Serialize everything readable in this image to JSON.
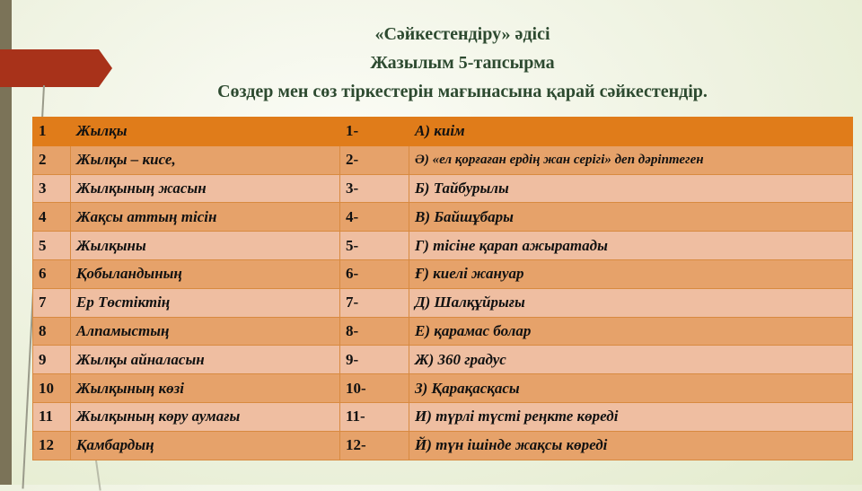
{
  "title": {
    "line1": "«Сәйкестендіру» әдісі",
    "line2": "Жазылым  5-тапсырма",
    "line3": "Сөздер мен сөз тіркестерін мағынасына қарай сәйкестендір."
  },
  "table": {
    "rows": [
      {
        "num": "1",
        "word": "Жылқы",
        "code": "1-",
        "answer": "А) киім"
      },
      {
        "num": "2",
        "word": "Жылқы – кисе,",
        "code": "2-",
        "answer": "Ә) «ел қорғаған ердің жан серігі» деп дәріптеген"
      },
      {
        "num": "3",
        "word": "Жылқының жасын",
        "code": "3-",
        "answer": "Б) Тайбурылы"
      },
      {
        "num": "4",
        "word": "Жақсы аттың тісін",
        "code": "4-",
        "answer": "В) Байшұбары"
      },
      {
        "num": "5",
        "word": "Жылқыны",
        "code": "5-",
        "answer": "Г) тісіне қарап ажыратады"
      },
      {
        "num": "6",
        "word": "Қобыландының",
        "code": "6-",
        "answer": "Ғ) киелі жануар"
      },
      {
        "num": "7",
        "word": "Ер Төстіктің",
        "code": "7-",
        "answer": "Д) Шалқұйрығы"
      },
      {
        "num": "8",
        "word": "Алпамыстың",
        "code": "8-",
        "answer": "Е) қарамас болар"
      },
      {
        "num": "9",
        "word": "Жылқы айналасын",
        "code": "9-",
        "answer": "Ж) 360 градус"
      },
      {
        "num": "10",
        "word": "Жылқының көзі",
        "code": "10-",
        "answer": "З) Қарақасқасы"
      },
      {
        "num": "11",
        "word": "Жылқының көру аумағы",
        "code": "11-",
        "answer": "И) түрлі түсті реңкте көреді"
      },
      {
        "num": "12",
        "word": "Қамбардың",
        "code": "12-",
        "answer": "Й) түн ішінде жақсы көреді"
      }
    ]
  },
  "colors": {
    "header": "#e07c1a",
    "row_dark": "#e6a26a",
    "row_light": "#efbea1",
    "title": "#2d4a30",
    "arrow": "#a8321a"
  }
}
